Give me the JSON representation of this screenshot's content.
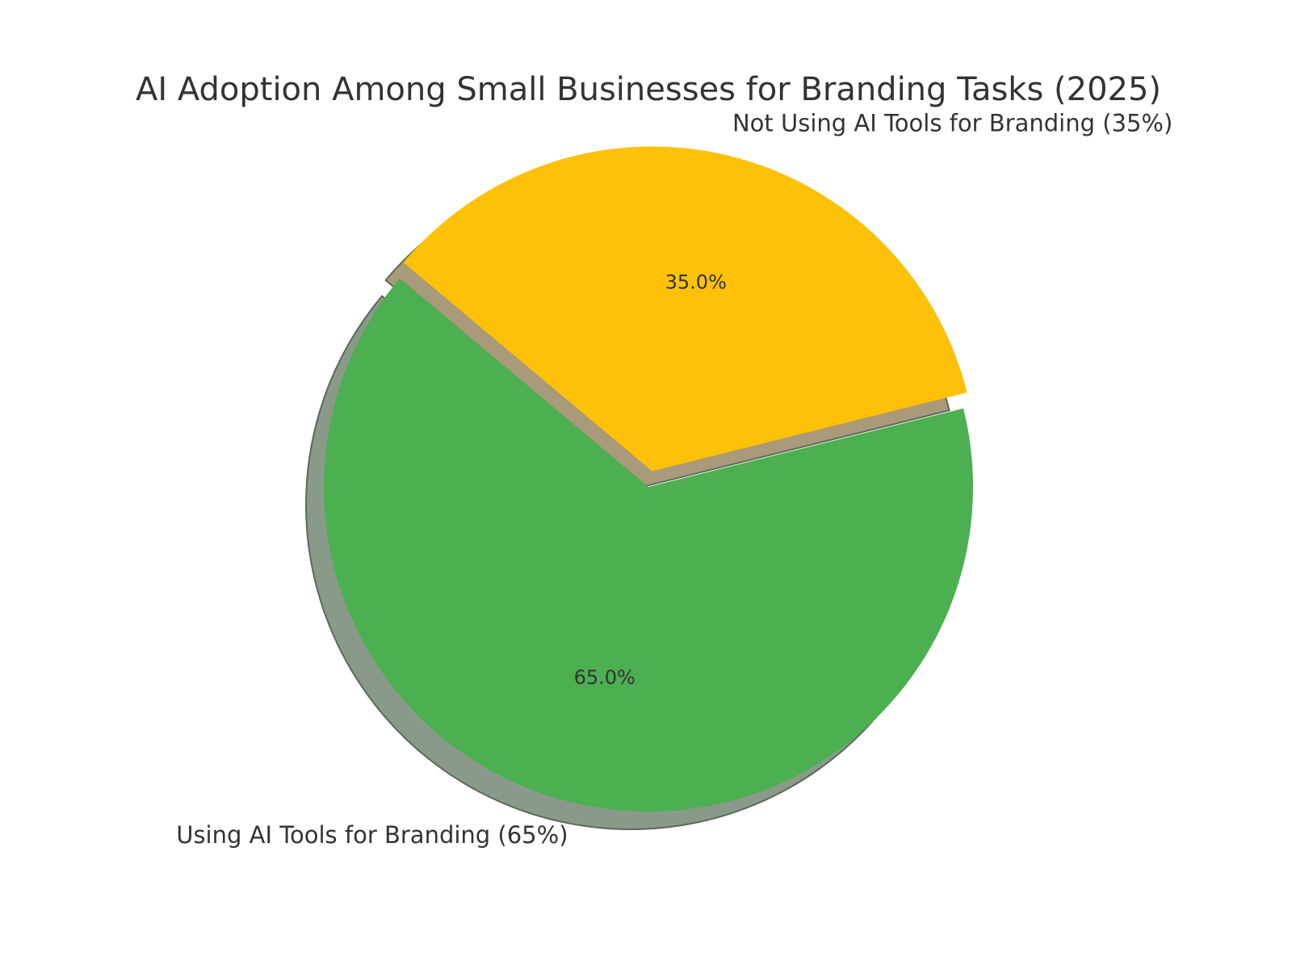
{
  "chart_data": {
    "type": "pie",
    "title": "AI Adoption Among Small Businesses for Branding Tasks (2025)",
    "start_angle_deg": 140,
    "shadow": true,
    "slices": [
      {
        "label": "Using AI Tools for Branding (65%)",
        "value": 65,
        "pct_label": "65.0%",
        "color": "#4caf50",
        "shadow_color": "#8a9a8a",
        "explode": 0
      },
      {
        "label": "Not Using AI Tools for Branding (35%)",
        "value": 35,
        "pct_label": "35.0%",
        "color": "#ffc107",
        "shadow_color": "#a89a7a",
        "explode": 0.05
      }
    ]
  }
}
